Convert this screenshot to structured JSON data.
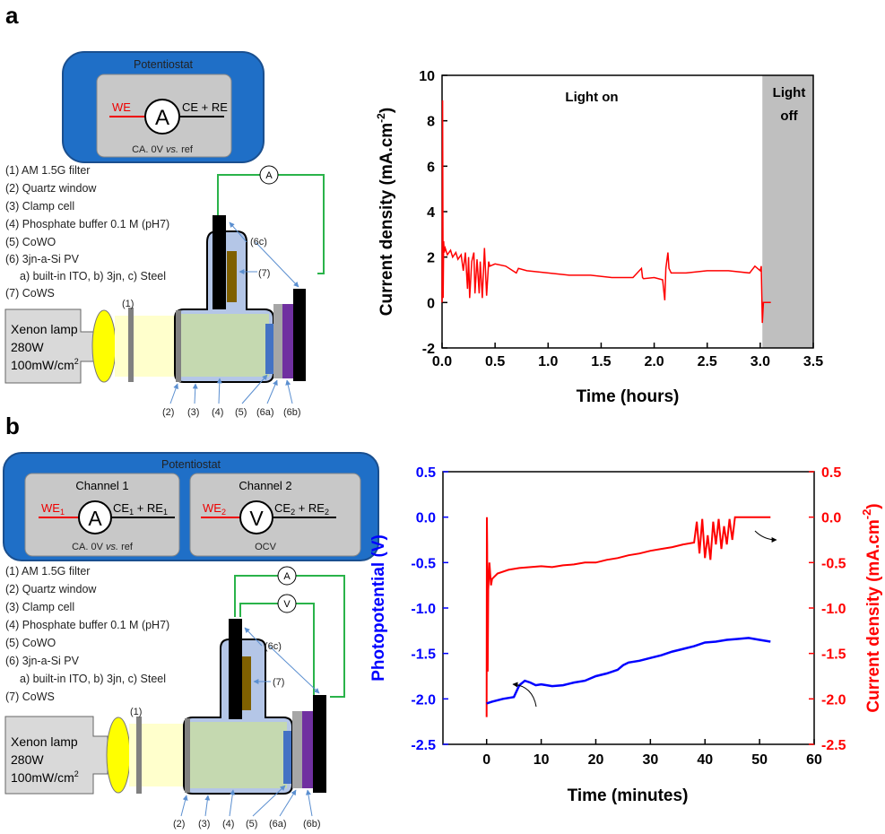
{
  "labels": {
    "a": "a",
    "b": "b"
  },
  "diagram_a": {
    "potentiostat": "Potentiostat",
    "we": "WE",
    "ammeter": "A",
    "ce_re": "CE + RE",
    "mode_prefix": "CA. 0V ",
    "mode_vs": "vs.",
    "mode_suffix": " ref",
    "wire_meter": "A",
    "legend": [
      "(1) AM 1.5G filter",
      "(2) Quartz window",
      "(3) Clamp cell",
      "(4) Phosphate buffer 0.1 M (pH7)",
      "(5) CoWO",
      "(6) 3jn-a-Si PV",
      "a) built-in ITO, b) 3jn, c) Steel",
      "(7) CoWS"
    ],
    "lamp": [
      "Xenon lamp",
      "280W",
      "100mW/cm"
    ],
    "lamp_sup": "2",
    "parts": {
      "p1": "(1)",
      "p2": "(2)",
      "p3": "(3)",
      "p4": "(4)",
      "p5": "(5)",
      "p6a": "(6a)",
      "p6b": "(6b)",
      "p6c": "(6c)",
      "p7": "(7)"
    }
  },
  "diagram_b": {
    "potentiostat": "Potentiostat",
    "channel1": "Channel 1",
    "channel2": "Channel 2",
    "we1": "WE",
    "we1_sub": "1",
    "ammeter": "A",
    "ce1": "CE",
    "ce1_sub": "1",
    "re_plus": " + RE",
    "re1_sub": "1",
    "mode1_prefix": "CA. 0V ",
    "mode1_vs": "vs.",
    "mode1_suffix": " ref",
    "we2": "WE",
    "we2_sub": "2",
    "voltmeter": "V",
    "ce2": "CE",
    "ce2_sub": "2",
    "re2_sub": "2",
    "mode2": "OCV",
    "wire_meter_a": "A",
    "wire_meter_v": "V",
    "legend": [
      "(1) AM 1.5G filter",
      "(2) Quartz window",
      "(3) Clamp cell",
      "(4) Phosphate buffer 0.1 M (pH7)",
      "(5) CoWO",
      "(6) 3jn-a-Si PV",
      "a) built-in ITO, b) 3jn, c) Steel",
      "(7) CoWS"
    ],
    "lamp": [
      "Xenon lamp",
      "280W",
      "100mW/cm"
    ],
    "lamp_sup": "2",
    "parts": {
      "p1": "(1)",
      "p2": "(2)",
      "p3": "(3)",
      "p4": "(4)",
      "p5": "(5)",
      "p6a": "(6a)",
      "p6b": "(6b)",
      "p6c": "(6c)",
      "p7": "(7)"
    }
  },
  "chart_data": [
    {
      "type": "line",
      "xlabel": "Time (hours)",
      "ylabel": "Current density (mA.cm",
      "ylabel_sup": "-2",
      "ylabel_close": ")",
      "xlim": [
        0,
        3.5
      ],
      "ylim": [
        -2,
        10
      ],
      "xticks": [
        "0.0",
        "0.5",
        "1.0",
        "1.5",
        "2.0",
        "2.5",
        "3.0",
        "3.5"
      ],
      "yticks": [
        "-2",
        "0",
        "2",
        "4",
        "6",
        "8",
        "10"
      ],
      "annotations": {
        "light_on": "Light on",
        "light_off_1": "Light",
        "light_off_2": "off"
      },
      "light_off_region": [
        3.02,
        3.5
      ],
      "colors": {
        "line": "#ff0000",
        "shade": "#bfbfbf"
      },
      "series": [
        {
          "x": [
            0.0,
            0.005,
            0.01,
            0.015,
            0.02,
            0.03,
            0.05,
            0.08,
            0.1,
            0.13,
            0.15,
            0.18,
            0.2,
            0.22,
            0.24,
            0.25,
            0.26,
            0.28,
            0.3,
            0.31,
            0.33,
            0.35,
            0.36,
            0.38,
            0.4,
            0.42,
            0.44,
            0.45,
            0.5,
            0.6,
            0.7,
            0.72,
            0.8,
            1.0,
            1.2,
            1.4,
            1.6,
            1.8,
            1.88,
            1.89,
            1.9,
            2.0,
            2.08,
            2.1,
            2.11,
            2.13,
            2.14,
            2.16,
            2.3,
            2.5,
            2.7,
            2.9,
            2.95,
            3.0,
            3.01,
            3.02,
            3.03,
            3.1
          ],
          "y": [
            0.0,
            8.9,
            0.2,
            2.7,
            2.2,
            2.4,
            2.1,
            2.3,
            2.0,
            2.2,
            1.9,
            2.1,
            1.4,
            2.2,
            0.6,
            2.0,
            0.2,
            1.8,
            2.2,
            0.4,
            1.9,
            0.4,
            1.8,
            0.2,
            2.4,
            0.3,
            1.8,
            1.6,
            1.7,
            1.6,
            1.3,
            1.5,
            1.4,
            1.3,
            1.2,
            1.2,
            1.1,
            1.1,
            1.5,
            1.1,
            1.05,
            1.1,
            1.0,
            0.1,
            1.5,
            2.2,
            1.5,
            1.3,
            1.3,
            1.4,
            1.4,
            1.3,
            1.6,
            1.4,
            1.6,
            -0.9,
            0.0,
            0.0
          ]
        }
      ]
    },
    {
      "type": "line",
      "xlabel": "Time (minutes)",
      "ylabel_left": "Photopotential (V)",
      "ylabel_right": "Current density (mA.cm",
      "ylabel_right_sup": "-2",
      "ylabel_right_close": ")",
      "xlim": [
        -8,
        60
      ],
      "ylim_left": [
        -2.5,
        0.5
      ],
      "ylim_right": [
        -2.5,
        0.5
      ],
      "xticks": [
        "0",
        "10",
        "20",
        "30",
        "40",
        "50",
        "60"
      ],
      "yticks": [
        "-2.5",
        "-2.0",
        "-1.5",
        "-1.0",
        "-0.5",
        "0.0",
        "0.5"
      ],
      "colors": {
        "left": "#0000ff",
        "right": "#ff0000"
      },
      "series": [
        {
          "axis": "right",
          "x": [
            0.0,
            0.05,
            0.1,
            0.2,
            0.3,
            0.5,
            0.8,
            1.0,
            2,
            4,
            6,
            8,
            10,
            12,
            14,
            16,
            18,
            20,
            22,
            24,
            26,
            28,
            30,
            32,
            34,
            36,
            38,
            38.5,
            39,
            39.5,
            40,
            40.5,
            41,
            41.5,
            42,
            42.5,
            43,
            43.5,
            44,
            44.5,
            45,
            45.5,
            46,
            48,
            50,
            52
          ],
          "y": [
            -2.2,
            0.0,
            -0.3,
            -1.7,
            -0.8,
            -0.5,
            -0.75,
            -0.68,
            -0.62,
            -0.58,
            -0.56,
            -0.55,
            -0.54,
            -0.55,
            -0.53,
            -0.52,
            -0.5,
            -0.5,
            -0.47,
            -0.45,
            -0.42,
            -0.4,
            -0.37,
            -0.35,
            -0.33,
            -0.3,
            -0.28,
            -0.05,
            -0.4,
            -0.02,
            -0.45,
            -0.2,
            -0.47,
            -0.05,
            -0.3,
            -0.02,
            -0.35,
            -0.1,
            -0.3,
            -0.02,
            -0.25,
            0.0,
            0.0,
            0.0,
            0.0,
            0.0
          ]
        },
        {
          "axis": "left",
          "x": [
            0,
            1,
            3,
            5,
            6,
            7,
            8,
            9,
            10,
            12,
            14,
            16,
            18,
            20,
            22,
            24,
            25,
            26,
            28,
            30,
            32,
            34,
            36,
            38,
            40,
            42,
            44,
            46,
            48,
            50,
            52
          ],
          "y": [
            -2.05,
            -2.03,
            -2.0,
            -1.98,
            -1.85,
            -1.8,
            -1.82,
            -1.85,
            -1.84,
            -1.86,
            -1.85,
            -1.82,
            -1.8,
            -1.75,
            -1.72,
            -1.68,
            -1.63,
            -1.6,
            -1.58,
            -1.55,
            -1.52,
            -1.48,
            -1.45,
            -1.42,
            -1.38,
            -1.37,
            -1.35,
            -1.34,
            -1.33,
            -1.35,
            -1.37
          ]
        }
      ]
    }
  ]
}
